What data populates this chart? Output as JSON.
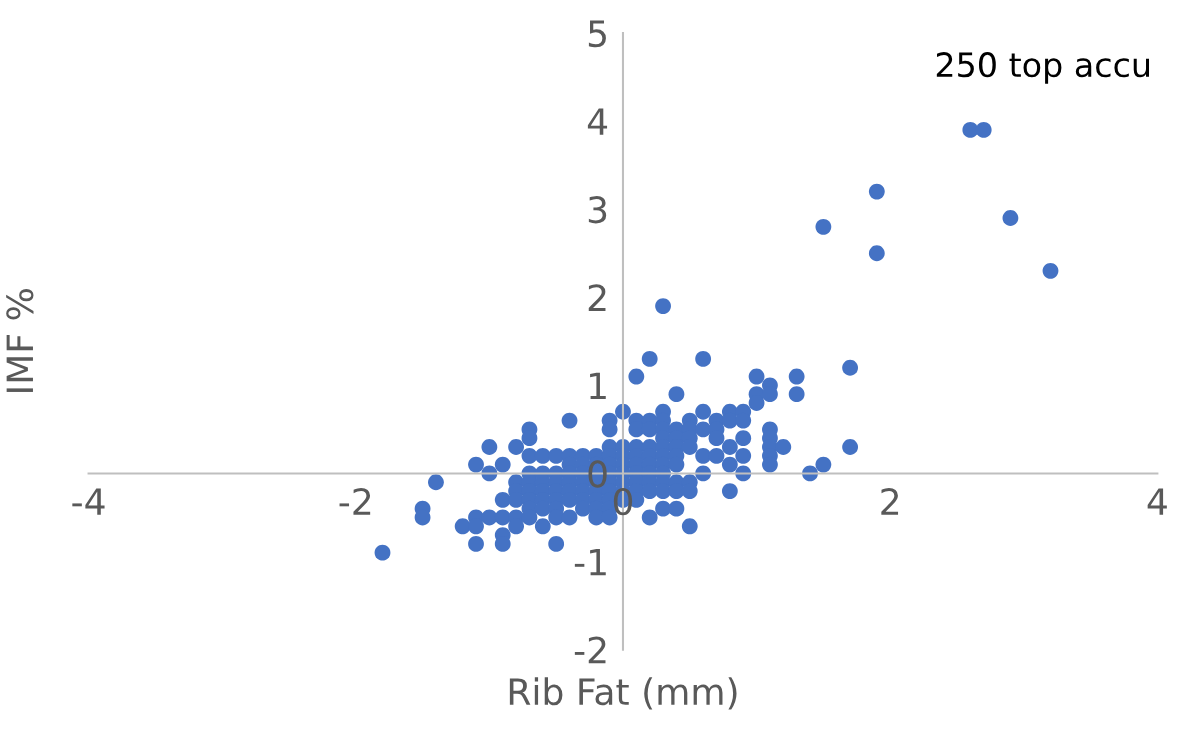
{
  "chart_data": {
    "type": "scatter",
    "title": "250 top accu",
    "xlabel": "Rib Fat (mm)",
    "ylabel": "IMF %",
    "xlim": [
      -4,
      4
    ],
    "ylim": [
      -2,
      5
    ],
    "xticks": [
      -4,
      -2,
      0,
      2,
      4
    ],
    "yticks": [
      -2,
      -1,
      0,
      1,
      2,
      3,
      4,
      5
    ],
    "grid": false,
    "marker": "circle",
    "series": [
      {
        "color": "#4472c4",
        "x": [
          2.6,
          2.7,
          1.9,
          1.5,
          1.9,
          2.9,
          3.2,
          0.3,
          1.7,
          0.2,
          0.6,
          0.1,
          1.0,
          1.3,
          1.1,
          0.4,
          1.0,
          1.3,
          1.1,
          1.0,
          1.7,
          1.5,
          1.4,
          -1.8,
          -1.4,
          -1.5,
          -1.5,
          0,
          0.3,
          0.6,
          0.8,
          0.9,
          -0.4,
          -0.1,
          0.1,
          0.2,
          0.3,
          0.5,
          0.7,
          0.8,
          0.9,
          -0.7,
          -0.1,
          0.1,
          0.2,
          0.3,
          0.4,
          0.5,
          0.6,
          0.7,
          1.1,
          -0.7,
          0.3,
          0.4,
          0.5,
          0.7,
          0.9,
          1.1,
          -1.0,
          -0.8,
          -0.1,
          0,
          0.1,
          0.2,
          0.3,
          0.4,
          0.5,
          0.8,
          1.1,
          1.2,
          -0.7,
          -0.6,
          -0.5,
          -0.4,
          -0.3,
          -0.2,
          -0.1,
          0,
          0.1,
          0.2,
          0.3,
          0.4,
          0.6,
          0.7,
          0.9,
          1.1,
          -1.1,
          -0.9,
          -0.4,
          -0.3,
          -0.2,
          -0.1,
          0,
          0.1,
          0.2,
          0.3,
          0.4,
          0.8,
          1.1,
          -1.0,
          -0.7,
          -0.6,
          -0.5,
          -0.4,
          -0.3,
          -0.2,
          -0.1,
          0,
          0.1,
          0.2,
          0.3,
          0.6,
          0.9,
          -0.8,
          -0.7,
          -0.6,
          -0.5,
          -0.4,
          -0.3,
          -0.2,
          -0.1,
          0,
          0.1,
          0.2,
          0.3,
          0.4,
          0.5,
          -0.8,
          -0.7,
          -0.6,
          -0.5,
          -0.4,
          -0.3,
          -0.2,
          -0.1,
          0,
          0.1,
          0.2,
          0.3,
          0.4,
          0.5,
          0.8,
          -0.9,
          -0.8,
          -0.7,
          -0.6,
          -0.5,
          -0.4,
          -0.3,
          -0.2,
          -0.1,
          0,
          0.1,
          -0.7,
          -0.6,
          -0.5,
          -0.3,
          -0.2,
          -0.1,
          0.3,
          0.4,
          -1.1,
          -1.0,
          -0.9,
          -0.8,
          -0.7,
          -0.5,
          -0.4,
          -0.2,
          -0.1,
          0.2,
          -1.2,
          -1.1,
          -0.8,
          -0.6,
          0.5,
          -0.9,
          -1.1,
          -0.9,
          -0.5
        ],
        "values": [
          3.9,
          3.9,
          3.2,
          2.8,
          2.5,
          2.9,
          2.3,
          1.9,
          1.2,
          1.3,
          1.3,
          1.1,
          1.1,
          1.1,
          1.0,
          0.9,
          0.9,
          0.9,
          0.9,
          0.8,
          0.3,
          0.1,
          0,
          -0.9,
          -0.1,
          -0.4,
          -0.5,
          0.7,
          0.7,
          0.7,
          0.7,
          0.7,
          0.6,
          0.6,
          0.6,
          0.6,
          0.6,
          0.6,
          0.6,
          0.6,
          0.6,
          0.5,
          0.5,
          0.5,
          0.5,
          0.5,
          0.5,
          0.5,
          0.5,
          0.5,
          0.5,
          0.4,
          0.4,
          0.4,
          0.4,
          0.4,
          0.4,
          0.4,
          0.3,
          0.3,
          0.3,
          0.3,
          0.3,
          0.3,
          0.3,
          0.3,
          0.3,
          0.3,
          0.3,
          0.3,
          0.2,
          0.2,
          0.2,
          0.2,
          0.2,
          0.2,
          0.2,
          0.2,
          0.2,
          0.2,
          0.2,
          0.2,
          0.2,
          0.2,
          0.2,
          0.2,
          0.1,
          0.1,
          0.1,
          0.1,
          0.1,
          0.1,
          0.1,
          0.1,
          0.1,
          0.1,
          0.1,
          0.1,
          0.1,
          0,
          0,
          0,
          0,
          0,
          0,
          0,
          0,
          0,
          0,
          0,
          0,
          0,
          0,
          -0.1,
          -0.1,
          -0.1,
          -0.1,
          -0.1,
          -0.1,
          -0.1,
          -0.1,
          -0.1,
          -0.1,
          -0.1,
          -0.1,
          -0.1,
          -0.1,
          -0.2,
          -0.2,
          -0.2,
          -0.2,
          -0.2,
          -0.2,
          -0.2,
          -0.2,
          -0.2,
          -0.2,
          -0.2,
          -0.2,
          -0.2,
          -0.2,
          -0.2,
          -0.3,
          -0.3,
          -0.3,
          -0.3,
          -0.3,
          -0.3,
          -0.3,
          -0.3,
          -0.3,
          -0.3,
          -0.3,
          -0.4,
          -0.4,
          -0.4,
          -0.4,
          -0.4,
          -0.4,
          -0.4,
          -0.4,
          -0.5,
          -0.5,
          -0.5,
          -0.5,
          -0.5,
          -0.5,
          -0.5,
          -0.5,
          -0.5,
          -0.5,
          -0.6,
          -0.6,
          -0.6,
          -0.6,
          -0.6,
          -0.7,
          -0.8,
          -0.8,
          -0.8
        ]
      }
    ]
  }
}
